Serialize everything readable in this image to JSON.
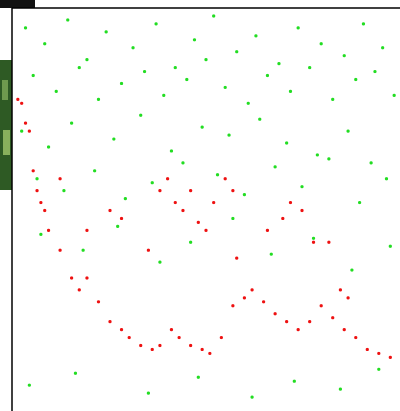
{
  "chart_data": {
    "type": "scatter",
    "xlim": [
      0,
      100
    ],
    "ylim": [
      0,
      100
    ],
    "series": [
      {
        "color": "#22dd22",
        "x": [
          3,
          8,
          14,
          19,
          24,
          31,
          37,
          42,
          47,
          52,
          58,
          63,
          69,
          74,
          80,
          86,
          91,
          96,
          5,
          11,
          17,
          22,
          28,
          34,
          39,
          45,
          50,
          55,
          61,
          66,
          72,
          77,
          83,
          89,
          94,
          99,
          2,
          9,
          15,
          26,
          33,
          41,
          49,
          56,
          64,
          71,
          79,
          87,
          93,
          6,
          13,
          21,
          29,
          36,
          44,
          53,
          60,
          68,
          75,
          82,
          90,
          97,
          7,
          18,
          27,
          38,
          46,
          57,
          67,
          78,
          88,
          98,
          4,
          16,
          35,
          48,
          62,
          73,
          85,
          95
        ],
        "values": [
          96,
          92,
          98,
          88,
          95,
          91,
          97,
          86,
          93,
          99,
          90,
          94,
          87,
          96,
          92,
          89,
          97,
          91,
          84,
          80,
          86,
          78,
          82,
          85,
          79,
          83,
          88,
          81,
          77,
          84,
          80,
          86,
          78,
          83,
          85,
          79,
          70,
          66,
          72,
          68,
          74,
          65,
          71,
          69,
          73,
          67,
          64,
          70,
          62,
          58,
          55,
          60,
          53,
          57,
          62,
          59,
          54,
          61,
          56,
          63,
          52,
          58,
          44,
          40,
          46,
          37,
          42,
          48,
          39,
          43,
          35,
          41,
          6,
          9,
          4,
          8,
          3,
          7,
          5,
          10
        ]
      },
      {
        "color": "#ee1111",
        "x": [
          2,
          3,
          5,
          7,
          9,
          12,
          15,
          17,
          19,
          22,
          25,
          28,
          30,
          33,
          36,
          38,
          41,
          43,
          46,
          49,
          51,
          54,
          57,
          60,
          62,
          65,
          68,
          71,
          74,
          77,
          80,
          83,
          86,
          89,
          92,
          95,
          98,
          1,
          4,
          6,
          8,
          12,
          19,
          25,
          28,
          35,
          38,
          40,
          42,
          44,
          46,
          48,
          50,
          52,
          55,
          57,
          58,
          66,
          70,
          72,
          75,
          78,
          82,
          85,
          87
        ],
        "values": [
          77,
          72,
          60,
          52,
          45,
          40,
          33,
          30,
          33,
          27,
          22,
          20,
          18,
          16,
          15,
          16,
          20,
          18,
          16,
          15,
          14,
          18,
          26,
          28,
          30,
          27,
          24,
          22,
          20,
          22,
          26,
          23,
          20,
          18,
          15,
          14,
          13,
          78,
          70,
          55,
          50,
          58,
          45,
          50,
          48,
          40,
          55,
          58,
          52,
          50,
          55,
          47,
          45,
          52,
          58,
          55,
          38,
          45,
          48,
          52,
          50,
          42,
          42,
          30,
          28
        ]
      }
    ]
  }
}
